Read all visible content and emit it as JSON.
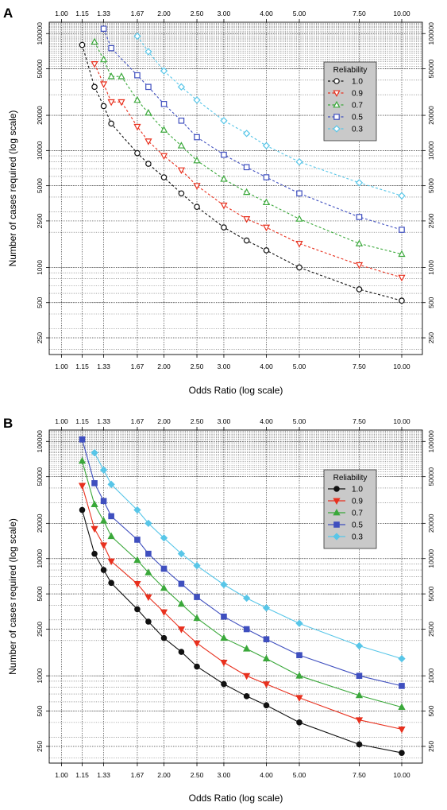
{
  "chart_data": [
    {
      "panel": "A",
      "type": "line",
      "xlabel": "Odds Ratio (log scale)",
      "ylabel": "Number of cases required (log scale)",
      "x_scale": "log",
      "y_scale": "log",
      "xlim": [
        0.92,
        11.5
      ],
      "ylim": [
        180,
        125000
      ],
      "x_ticks": [
        1.0,
        1.15,
        1.33,
        1.67,
        2.0,
        2.5,
        3.0,
        4.0,
        5.0,
        7.5,
        10.0
      ],
      "x_tick_labels": [
        "1.00",
        "1.15",
        "1.33",
        "1.67",
        "2.00",
        "2.50",
        "3.00",
        "4.00",
        "5.00",
        "7.50",
        "10.00"
      ],
      "y_ticks": [
        250,
        500,
        1000,
        2500,
        5000,
        10000,
        20000,
        50000,
        100000
      ],
      "y_tick_labels": [
        "250",
        "500",
        "1000",
        "2500",
        "5000",
        "10000",
        "20000",
        "50000",
        "100000"
      ],
      "grid": true,
      "legend": {
        "title": "Reliability",
        "placement": "top-right"
      },
      "line_style": "dashed",
      "marker_fill": "open",
      "x": [
        1.15,
        1.25,
        1.33,
        1.4,
        1.5,
        1.67,
        1.8,
        2.0,
        2.25,
        2.5,
        3.0,
        3.5,
        4.0,
        5.0,
        7.5,
        10.0
      ],
      "series": [
        {
          "name": "1.0",
          "color": "#111111",
          "marker": "circle",
          "values": [
            80000,
            35000,
            24000,
            17000,
            null,
            9500,
            7700,
            5900,
            4300,
            3300,
            2200,
            1700,
            1400,
            1000,
            650,
            520
          ]
        },
        {
          "name": "0.9",
          "color": "#e8301e",
          "marker": "triangle-down",
          "values": [
            null,
            55000,
            37000,
            26000,
            26000,
            16000,
            12000,
            9000,
            6800,
            5000,
            3400,
            2600,
            2200,
            1600,
            1050,
            820
          ]
        },
        {
          "name": "0.7",
          "color": "#3aa83a",
          "marker": "triangle-up",
          "values": [
            null,
            85000,
            60000,
            43000,
            43000,
            27000,
            21000,
            15000,
            11000,
            8200,
            5700,
            4400,
            3600,
            2600,
            1600,
            1300
          ]
        },
        {
          "name": "0.5",
          "color": "#3f4fbf",
          "marker": "square",
          "values": [
            null,
            null,
            110000,
            75000,
            null,
            44000,
            35000,
            25000,
            18000,
            13000,
            9200,
            7200,
            5900,
            4300,
            2700,
            2100
          ]
        },
        {
          "name": "0.3",
          "color": "#58c6e8",
          "marker": "diamond",
          "values": [
            null,
            null,
            null,
            null,
            null,
            95000,
            70000,
            48000,
            35000,
            27000,
            18000,
            14000,
            11000,
            8000,
            5300,
            4100
          ]
        }
      ]
    },
    {
      "panel": "B",
      "type": "line",
      "xlabel": "Odds Ratio (log scale)",
      "ylabel": "Number of cases required (log scale)",
      "x_scale": "log",
      "y_scale": "log",
      "xlim": [
        0.92,
        11.5
      ],
      "ylim": [
        180,
        125000
      ],
      "x_ticks": [
        1.0,
        1.15,
        1.33,
        1.67,
        2.0,
        2.5,
        3.0,
        4.0,
        5.0,
        7.5,
        10.0
      ],
      "x_tick_labels": [
        "1.00",
        "1.15",
        "1.33",
        "1.67",
        "2.00",
        "2.50",
        "3.00",
        "4.00",
        "5.00",
        "7.50",
        "10.00"
      ],
      "y_ticks": [
        250,
        500,
        1000,
        2500,
        5000,
        10000,
        20000,
        50000,
        100000
      ],
      "y_tick_labels": [
        "250",
        "500",
        "1000",
        "2500",
        "5000",
        "10000",
        "20000",
        "50000",
        "100000"
      ],
      "grid": true,
      "legend": {
        "title": "Reliability",
        "placement": "top-right"
      },
      "line_style": "solid",
      "marker_fill": "filled",
      "x": [
        1.15,
        1.25,
        1.33,
        1.4,
        1.5,
        1.67,
        1.8,
        2.0,
        2.25,
        2.5,
        3.0,
        3.5,
        4.0,
        5.0,
        7.5,
        10.0
      ],
      "series": [
        {
          "name": "1.0",
          "color": "#111111",
          "marker": "circle",
          "values": [
            26000,
            11000,
            8000,
            6200,
            null,
            3700,
            2900,
            2100,
            1600,
            1200,
            850,
            670,
            560,
            400,
            260,
            220
          ]
        },
        {
          "name": "0.9",
          "color": "#e8301e",
          "marker": "triangle-down",
          "values": [
            42000,
            18000,
            13000,
            9500,
            null,
            6100,
            4700,
            3500,
            2500,
            1900,
            1300,
            1000,
            850,
            650,
            420,
            350
          ]
        },
        {
          "name": "0.7",
          "color": "#3aa83a",
          "marker": "triangle-up",
          "values": [
            68000,
            29000,
            21000,
            15500,
            null,
            9700,
            7600,
            5600,
            4100,
            3100,
            2100,
            1700,
            1400,
            1000,
            680,
            540
          ]
        },
        {
          "name": "0.5",
          "color": "#3f4fbf",
          "marker": "square",
          "values": [
            104000,
            44000,
            31000,
            23000,
            null,
            14500,
            11000,
            8200,
            6100,
            4700,
            3200,
            2500,
            2050,
            1500,
            1000,
            820
          ]
        },
        {
          "name": "0.3",
          "color": "#58c6e8",
          "marker": "diamond",
          "values": [
            null,
            80000,
            57000,
            43000,
            null,
            26000,
            20000,
            15000,
            11000,
            8700,
            6000,
            4600,
            3800,
            2800,
            1800,
            1400
          ]
        }
      ]
    }
  ]
}
